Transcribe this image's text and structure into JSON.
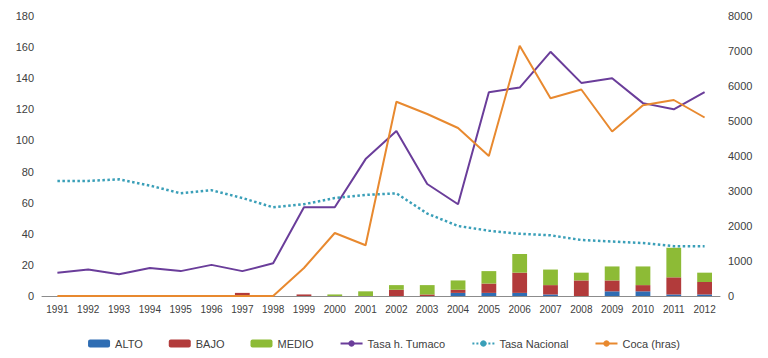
{
  "chart_data": {
    "type": "bar",
    "categories": [
      "1991",
      "1992",
      "1993",
      "1994",
      "1995",
      "1996",
      "1997",
      "1998",
      "1999",
      "2000",
      "2001",
      "2002",
      "2003",
      "2004",
      "2005",
      "2006",
      "2007",
      "2008",
      "2009",
      "2010",
      "2011",
      "2012"
    ],
    "ylim": [
      0,
      180
    ],
    "yticks": [
      0,
      20,
      40,
      60,
      80,
      100,
      120,
      140,
      160,
      180
    ],
    "y2lim": [
      0,
      8000
    ],
    "y2ticks": [
      0,
      1000,
      2000,
      3000,
      4000,
      5000,
      6000,
      7000,
      8000
    ],
    "grid": false,
    "legend": "bottom",
    "stacked": true,
    "series": [
      {
        "name": "ALTO",
        "type": "bar",
        "color": "#2f6db3",
        "values": [
          0,
          0,
          0,
          0,
          0,
          0,
          0,
          0,
          0,
          0,
          0,
          0,
          0,
          2,
          2,
          2,
          1,
          0,
          3,
          3,
          1,
          1
        ]
      },
      {
        "name": "BAJO",
        "type": "bar",
        "color": "#b23b3b",
        "values": [
          0,
          0,
          0,
          0,
          0,
          0,
          2,
          0,
          1,
          0,
          0,
          4,
          1,
          2,
          6,
          13,
          6,
          10,
          7,
          4,
          11,
          8
        ]
      },
      {
        "name": "MEDIO",
        "type": "bar",
        "color": "#8dbb36",
        "values": [
          0,
          0,
          0,
          0,
          0,
          0,
          0,
          0,
          0,
          1,
          3,
          3,
          6,
          6,
          8,
          12,
          10,
          5,
          9,
          12,
          19,
          6
        ]
      },
      {
        "name": "Tasa h. Tumaco",
        "type": "line",
        "color": "#6a3d9a",
        "marker": "none",
        "line_style": "solid",
        "values": [
          15,
          17,
          14,
          18,
          16,
          20,
          16,
          21,
          57,
          57,
          88,
          106,
          72,
          59,
          131,
          134,
          157,
          137,
          140,
          124,
          120,
          131
        ]
      },
      {
        "name": "Tasa Nacional",
        "type": "line",
        "color": "#3a9fb8",
        "marker": "none",
        "line_style": "dotted",
        "values": [
          74,
          74,
          75,
          71,
          66,
          68,
          63,
          57,
          59,
          63,
          65,
          66,
          53,
          45,
          42,
          40,
          39,
          36,
          35,
          34,
          32,
          32
        ]
      },
      {
        "name": "Coca (hras)",
        "type": "line",
        "color": "#e8892f",
        "marker": "none",
        "line_style": "solid",
        "axis": "y2",
        "values": [
          0,
          0,
          0,
          0,
          0,
          0,
          0,
          0,
          800,
          1800,
          1450,
          5550,
          5200,
          4800,
          4000,
          7150,
          5650,
          5900,
          4700,
          5450,
          5600,
          5100
        ]
      }
    ]
  }
}
